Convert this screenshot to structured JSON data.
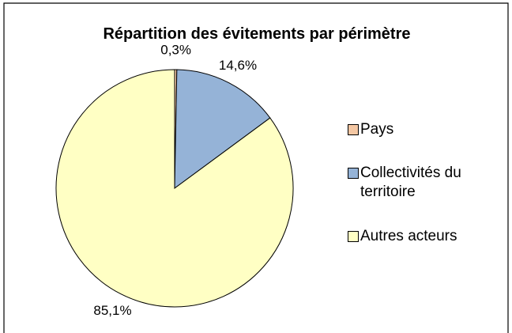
{
  "chart_data": {
    "type": "pie",
    "title": "Répartition des évitements par périmètre",
    "categories": [
      "Pays",
      "Collectivités du territoire",
      "Autres acteurs"
    ],
    "values": [
      0.3,
      14.6,
      85.1
    ],
    "value_labels": [
      "0,3%",
      "14,6%",
      "85,1%"
    ],
    "colors": [
      "#f4c7a3",
      "#95b3d7",
      "#ffffc4"
    ],
    "legend": "right"
  }
}
